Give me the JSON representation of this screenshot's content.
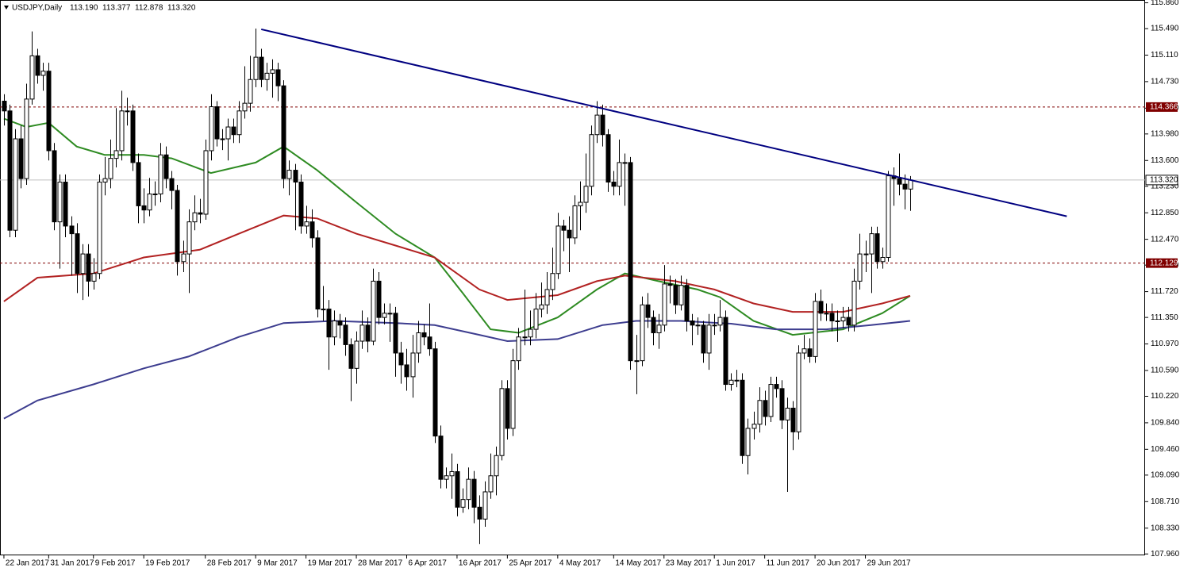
{
  "chart_data": {
    "type": "candlestick",
    "title": "USDJPY,Daily",
    "header_quote": [
      {
        "value": 113.19,
        "label": "113.190"
      },
      {
        "value": 113.377,
        "label": "113.377"
      },
      {
        "value": 112.878,
        "label": "112.878"
      },
      {
        "value": 113.32,
        "label": "113.320"
      }
    ],
    "xlim": [
      -0.7,
      204
    ],
    "ylim": [
      107.94,
      115.9
    ],
    "up_color": "#ffffff",
    "down_color": "#000000",
    "yticks": [
      {
        "value": 115.86,
        "label": "115.860"
      },
      {
        "value": 115.49,
        "label": "115.490"
      },
      {
        "value": 115.11,
        "label": "115.110"
      },
      {
        "value": 114.73,
        "label": "114.730"
      },
      {
        "value": 114.35,
        "label": "114.350"
      },
      {
        "value": 113.98,
        "label": "113.980"
      },
      {
        "value": 113.6,
        "label": "113.600"
      },
      {
        "value": 113.23,
        "label": "113.230"
      },
      {
        "value": 112.85,
        "label": "112.850"
      },
      {
        "value": 112.47,
        "label": "112.470"
      },
      {
        "value": 112.1,
        "label": "112.100"
      },
      {
        "value": 111.72,
        "label": "111.720"
      },
      {
        "value": 111.35,
        "label": "111.350"
      },
      {
        "value": 110.97,
        "label": "110.970"
      },
      {
        "value": 110.59,
        "label": "110.590"
      },
      {
        "value": 110.22,
        "label": "110.220"
      },
      {
        "value": 109.84,
        "label": "109.840"
      },
      {
        "value": 109.46,
        "label": "109.460"
      },
      {
        "value": 109.09,
        "label": "109.090"
      },
      {
        "value": 108.71,
        "label": "108.710"
      },
      {
        "value": 108.33,
        "label": "108.330"
      },
      {
        "value": 107.96,
        "label": "107.960"
      }
    ],
    "xticks": [
      {
        "value": 0,
        "label": "22 Jan 2017"
      },
      {
        "value": 8,
        "label": "31 Jan 2017"
      },
      {
        "value": 16,
        "label": "9 Feb 2017"
      },
      {
        "value": 25,
        "label": "19 Feb 2017"
      },
      {
        "value": 36,
        "label": "28 Feb 2017"
      },
      {
        "value": 45,
        "label": "9 Mar 2017"
      },
      {
        "value": 54,
        "label": "19 Mar 2017"
      },
      {
        "value": 63,
        "label": "28 Mar 2017"
      },
      {
        "value": 72,
        "label": "6 Apr 2017"
      },
      {
        "value": 81,
        "label": "16 Apr 2017"
      },
      {
        "value": 90,
        "label": "25 Apr 2017"
      },
      {
        "value": 99,
        "label": "4 May 2017"
      },
      {
        "value": 109,
        "label": "14 May 2017"
      },
      {
        "value": 118,
        "label": "23 May 2017"
      },
      {
        "value": 127,
        "label": "1 Jun 2017"
      },
      {
        "value": 136,
        "label": "11 Jun 2017"
      },
      {
        "value": 145,
        "label": "20 Jun 2017"
      },
      {
        "value": 154,
        "label": "29 Jun 2017"
      }
    ],
    "levels": [
      {
        "value": 114.366,
        "color": "#800000",
        "style": "dashed"
      },
      {
        "value": 112.129,
        "color": "#800000",
        "style": "dashed"
      }
    ],
    "current_price": {
      "value": 113.32,
      "label": "113.320",
      "color": "#c0c0c0"
    },
    "trendline": {
      "x": [
        46,
        190
      ],
      "values": [
        115.48,
        112.8
      ],
      "color": "#000080"
    },
    "series": [
      {
        "color": "#2e8b22",
        "x": [
          0,
          4,
          8,
          13,
          18,
          25,
          30,
          37,
          45,
          50,
          56,
          63,
          70,
          77,
          82,
          87,
          92,
          99,
          106,
          111,
          117,
          124,
          128,
          134,
          141,
          150,
          157,
          162
        ],
        "values": [
          114.2,
          114.08,
          114.14,
          113.8,
          113.68,
          113.68,
          113.63,
          113.42,
          113.57,
          113.8,
          113.46,
          113.0,
          112.55,
          112.21,
          111.7,
          111.18,
          111.13,
          111.35,
          111.75,
          111.98,
          111.87,
          111.75,
          111.64,
          111.3,
          111.1,
          111.18,
          111.41,
          111.66
        ]
      },
      {
        "color": "#b22222",
        "x": [
          0,
          6,
          16,
          25,
          35,
          42,
          50,
          56,
          63,
          70,
          77,
          85,
          90,
          99,
          106,
          111,
          120,
          127,
          134,
          141,
          150,
          157,
          162
        ],
        "values": [
          111.58,
          111.92,
          111.98,
          112.21,
          112.32,
          112.55,
          112.81,
          112.77,
          112.55,
          112.38,
          112.21,
          111.75,
          111.6,
          111.67,
          111.87,
          111.95,
          111.87,
          111.75,
          111.55,
          111.43,
          111.43,
          111.55,
          111.66
        ]
      },
      {
        "color": "#3d3d8f",
        "x": [
          0,
          6,
          16,
          25,
          33,
          42,
          50,
          59,
          70,
          77,
          85,
          90,
          99,
          107,
          113,
          121,
          130,
          138,
          147,
          155,
          162
        ],
        "values": [
          109.9,
          110.16,
          110.39,
          110.62,
          110.79,
          111.07,
          111.27,
          111.3,
          111.27,
          111.24,
          111.1,
          111.01,
          111.04,
          111.24,
          111.3,
          111.3,
          111.26,
          111.18,
          111.18,
          111.24,
          111.3
        ]
      }
    ],
    "candles": [
      [
        114.45,
        114.55,
        114.1,
        114.31
      ],
      [
        114.31,
        114.4,
        112.5,
        112.6
      ],
      [
        112.6,
        114.05,
        112.5,
        113.91
      ],
      [
        113.91,
        114.1,
        113.2,
        113.34
      ],
      [
        113.34,
        114.7,
        113.25,
        114.48
      ],
      [
        114.48,
        115.45,
        114.4,
        115.1
      ],
      [
        115.1,
        115.2,
        114.7,
        114.82
      ],
      [
        114.82,
        115.0,
        114.6,
        114.88
      ],
      [
        114.88,
        115.0,
        113.6,
        113.74
      ],
      [
        113.74,
        113.85,
        112.6,
        112.72
      ],
      [
        112.72,
        113.4,
        112.05,
        113.29
      ],
      [
        113.29,
        113.4,
        112.5,
        112.66
      ],
      [
        112.66,
        112.8,
        111.95,
        112.55
      ],
      [
        112.55,
        112.7,
        111.7,
        111.98
      ],
      [
        111.98,
        112.4,
        111.6,
        112.26
      ],
      [
        112.26,
        112.4,
        111.65,
        111.87
      ],
      [
        111.87,
        112.2,
        111.75,
        111.98
      ],
      [
        111.98,
        113.4,
        111.9,
        113.29
      ],
      [
        113.29,
        113.65,
        113.1,
        113.34
      ],
      [
        113.34,
        113.9,
        113.2,
        113.63
      ],
      [
        113.63,
        114.35,
        113.5,
        113.74
      ],
      [
        113.74,
        114.6,
        113.6,
        114.31
      ],
      [
        114.31,
        114.5,
        114.1,
        114.31
      ],
      [
        114.31,
        114.4,
        113.45,
        113.57
      ],
      [
        113.57,
        113.7,
        112.7,
        112.95
      ],
      [
        112.95,
        113.2,
        112.7,
        112.89
      ],
      [
        112.89,
        113.35,
        112.8,
        113.12
      ],
      [
        113.12,
        113.3,
        112.95,
        113.12
      ],
      [
        113.12,
        113.85,
        113.0,
        113.68
      ],
      [
        113.68,
        113.8,
        113.2,
        113.34
      ],
      [
        113.34,
        113.45,
        112.9,
        113.17
      ],
      [
        113.17,
        113.25,
        111.95,
        112.15
      ],
      [
        112.15,
        112.45,
        112.0,
        112.26
      ],
      [
        112.26,
        112.9,
        111.7,
        112.72
      ],
      [
        112.72,
        113.1,
        112.6,
        112.85
      ],
      [
        112.85,
        113.05,
        112.7,
        112.83
      ],
      [
        112.83,
        113.9,
        112.75,
        113.74
      ],
      [
        113.74,
        114.55,
        113.6,
        114.37
      ],
      [
        114.37,
        114.45,
        113.8,
        113.91
      ],
      [
        113.91,
        114.05,
        113.75,
        113.91
      ],
      [
        113.91,
        114.2,
        113.6,
        114.08
      ],
      [
        114.08,
        114.2,
        113.85,
        113.97
      ],
      [
        113.97,
        114.45,
        113.85,
        114.31
      ],
      [
        114.31,
        114.95,
        114.2,
        114.42
      ],
      [
        114.42,
        115.1,
        114.3,
        114.76
      ],
      [
        114.76,
        115.49,
        114.65,
        115.08
      ],
      [
        115.08,
        115.2,
        114.65,
        114.76
      ],
      [
        114.76,
        115.0,
        114.6,
        114.85
      ],
      [
        114.85,
        115.05,
        114.5,
        114.9
      ],
      [
        114.9,
        115.0,
        114.45,
        114.67
      ],
      [
        114.67,
        114.75,
        113.2,
        113.34
      ],
      [
        113.34,
        113.6,
        113.1,
        113.46
      ],
      [
        113.46,
        113.55,
        112.6,
        113.29
      ],
      [
        113.29,
        113.4,
        112.55,
        112.66
      ],
      [
        112.66,
        112.95,
        112.55,
        112.72
      ],
      [
        112.72,
        112.9,
        112.35,
        112.49
      ],
      [
        112.49,
        112.6,
        111.35,
        111.47
      ],
      [
        111.47,
        111.8,
        111.3,
        111.47
      ],
      [
        111.47,
        111.6,
        110.6,
        111.07
      ],
      [
        111.07,
        111.45,
        110.95,
        111.3
      ],
      [
        111.3,
        111.4,
        111.05,
        111.24
      ],
      [
        111.24,
        111.35,
        110.8,
        110.96
      ],
      [
        110.96,
        111.05,
        110.15,
        110.62
      ],
      [
        110.62,
        111.15,
        110.4,
        111.01
      ],
      [
        111.01,
        111.45,
        110.9,
        111.24
      ],
      [
        111.24,
        111.35,
        110.85,
        111.01
      ],
      [
        111.01,
        112.05,
        110.95,
        111.87
      ],
      [
        111.87,
        112.0,
        111.25,
        111.35
      ],
      [
        111.35,
        111.55,
        111.25,
        111.41
      ],
      [
        111.41,
        111.55,
        111.0,
        111.41
      ],
      [
        111.41,
        111.5,
        110.5,
        110.84
      ],
      [
        110.84,
        111.0,
        110.4,
        110.67
      ],
      [
        110.67,
        110.9,
        110.3,
        110.5
      ],
      [
        110.5,
        111.1,
        110.2,
        110.84
      ],
      [
        110.84,
        111.3,
        110.7,
        111.13
      ],
      [
        111.13,
        111.25,
        110.95,
        111.07
      ],
      [
        111.07,
        111.55,
        110.8,
        110.9
      ],
      [
        110.9,
        111.0,
        109.55,
        109.65
      ],
      [
        109.65,
        109.8,
        108.9,
        109.03
      ],
      [
        109.03,
        109.2,
        108.9,
        109.08
      ],
      [
        109.08,
        109.4,
        108.75,
        109.14
      ],
      [
        109.14,
        109.25,
        108.5,
        108.63
      ],
      [
        108.63,
        108.9,
        108.55,
        108.74
      ],
      [
        108.74,
        109.2,
        108.6,
        109.03
      ],
      [
        109.03,
        109.15,
        108.4,
        108.63
      ],
      [
        108.63,
        108.8,
        108.1,
        108.46
      ],
      [
        108.46,
        109.0,
        108.35,
        108.85
      ],
      [
        108.85,
        109.4,
        108.75,
        109.08
      ],
      [
        109.08,
        109.5,
        108.8,
        109.37
      ],
      [
        109.37,
        110.45,
        109.3,
        110.33
      ],
      [
        110.33,
        110.45,
        109.6,
        109.76
      ],
      [
        109.76,
        110.9,
        109.65,
        110.73
      ],
      [
        110.73,
        111.2,
        110.6,
        111.07
      ],
      [
        111.07,
        111.75,
        110.95,
        111.07
      ],
      [
        111.07,
        111.45,
        110.95,
        111.18
      ],
      [
        111.18,
        111.7,
        111.05,
        111.47
      ],
      [
        111.47,
        111.85,
        111.35,
        111.53
      ],
      [
        111.53,
        112.0,
        111.4,
        111.75
      ],
      [
        111.75,
        112.35,
        111.6,
        111.98
      ],
      [
        111.98,
        112.85,
        111.9,
        112.66
      ],
      [
        112.66,
        112.75,
        112.3,
        112.6
      ],
      [
        112.6,
        112.8,
        112.0,
        112.49
      ],
      [
        112.49,
        113.1,
        112.4,
        112.95
      ],
      [
        112.95,
        113.3,
        112.6,
        113.0
      ],
      [
        113.0,
        113.7,
        112.85,
        113.23
      ],
      [
        113.23,
        114.1,
        113.1,
        113.97
      ],
      [
        113.97,
        114.45,
        113.85,
        114.25
      ],
      [
        114.25,
        114.4,
        113.8,
        113.97
      ],
      [
        113.97,
        114.05,
        113.15,
        113.29
      ],
      [
        113.29,
        113.45,
        113.1,
        113.23
      ],
      [
        113.23,
        113.9,
        113.1,
        113.57
      ],
      [
        113.57,
        113.7,
        112.95,
        113.57
      ],
      [
        113.57,
        113.65,
        110.6,
        110.73
      ],
      [
        110.73,
        111.1,
        110.25,
        110.73
      ],
      [
        110.73,
        111.65,
        110.65,
        111.53
      ],
      [
        111.53,
        111.7,
        111.2,
        111.35
      ],
      [
        111.35,
        111.45,
        110.95,
        111.13
      ],
      [
        111.13,
        111.4,
        110.9,
        111.24
      ],
      [
        111.24,
        112.1,
        111.15,
        111.83
      ],
      [
        111.83,
        111.95,
        111.55,
        111.81
      ],
      [
        111.81,
        111.9,
        111.4,
        111.53
      ],
      [
        111.53,
        111.95,
        111.45,
        111.81
      ],
      [
        111.81,
        111.9,
        111.15,
        111.3
      ],
      [
        111.3,
        111.4,
        110.95,
        111.24
      ],
      [
        111.24,
        111.35,
        111.1,
        111.24
      ],
      [
        111.24,
        111.3,
        110.7,
        110.84
      ],
      [
        110.84,
        111.4,
        110.6,
        111.24
      ],
      [
        111.24,
        111.4,
        111.1,
        111.24
      ],
      [
        111.24,
        111.6,
        111.15,
        111.35
      ],
      [
        111.35,
        111.45,
        110.3,
        110.39
      ],
      [
        110.39,
        110.55,
        110.3,
        110.45
      ],
      [
        110.45,
        110.6,
        110.35,
        110.45
      ],
      [
        110.45,
        110.55,
        109.25,
        109.37
      ],
      [
        109.37,
        109.9,
        109.1,
        109.76
      ],
      [
        109.76,
        110.0,
        109.6,
        109.82
      ],
      [
        109.82,
        110.35,
        109.7,
        110.16
      ],
      [
        110.16,
        110.3,
        109.8,
        109.93
      ],
      [
        109.93,
        110.5,
        109.85,
        110.39
      ],
      [
        110.39,
        110.5,
        110.2,
        110.33
      ],
      [
        110.33,
        110.45,
        109.75,
        109.88
      ],
      [
        109.88,
        110.2,
        108.85,
        110.05
      ],
      [
        110.05,
        110.15,
        109.45,
        109.71
      ],
      [
        109.71,
        110.95,
        109.6,
        110.84
      ],
      [
        110.84,
        111.1,
        110.75,
        110.9
      ],
      [
        110.9,
        111.05,
        110.7,
        110.79
      ],
      [
        110.79,
        111.7,
        110.7,
        111.58
      ],
      [
        111.58,
        111.75,
        111.3,
        111.41
      ],
      [
        111.41,
        111.55,
        111.3,
        111.41
      ],
      [
        111.41,
        111.55,
        111.15,
        111.3
      ],
      [
        111.3,
        111.45,
        111.0,
        111.3
      ],
      [
        111.3,
        111.5,
        111.2,
        111.35
      ],
      [
        111.35,
        111.5,
        111.15,
        111.24
      ],
      [
        111.24,
        112.05,
        111.15,
        111.87
      ],
      [
        111.87,
        112.55,
        111.75,
        112.26
      ],
      [
        112.26,
        112.45,
        112.0,
        112.26
      ],
      [
        112.26,
        112.65,
        111.7,
        112.55
      ],
      [
        112.55,
        112.65,
        112.05,
        112.15
      ],
      [
        112.15,
        112.35,
        112.05,
        112.21
      ],
      [
        112.21,
        113.45,
        112.15,
        113.38
      ],
      [
        113.38,
        113.5,
        112.95,
        113.34
      ],
      [
        113.34,
        113.7,
        113.1,
        113.26
      ],
      [
        113.26,
        113.4,
        112.9,
        113.19
      ],
      [
        113.19,
        113.377,
        112.878,
        113.32
      ]
    ]
  }
}
